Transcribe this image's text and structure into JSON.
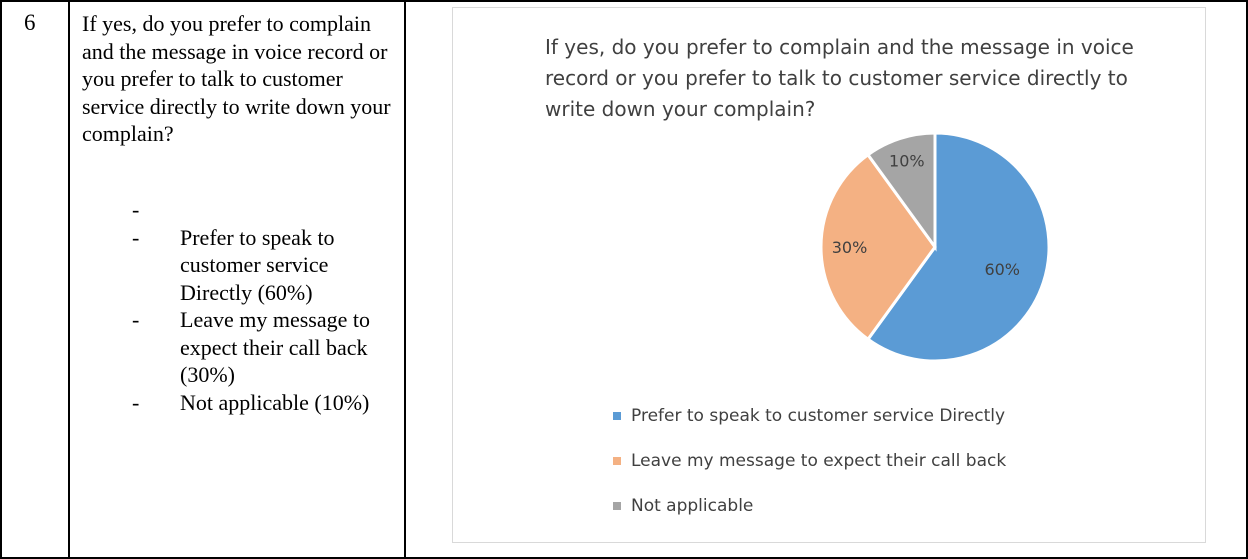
{
  "row": {
    "number": "6",
    "question": "If yes, do you prefer to complain and the message in voice record or you prefer to talk to customer service directly to write down your complain?",
    "options": [
      {
        "dash": "-",
        "text": ""
      },
      {
        "dash": "-",
        "text": "Prefer to speak to customer service Directly (60%)"
      },
      {
        "dash": "-",
        "text": "Leave my message to expect their call back (30%)"
      },
      {
        "dash": "-",
        "text": "Not applicable (10%)"
      }
    ]
  },
  "chart_data": {
    "type": "pie",
    "title": "If yes, do you prefer to complain and the message in voice record or you prefer to talk to customer service directly to write down your complain?",
    "categories": [
      "Prefer to speak to customer service Directly",
      "Leave my message to expect their call back",
      "Not applicable"
    ],
    "values": [
      60,
      30,
      10
    ],
    "labels": [
      "60%",
      "30%",
      "10%"
    ],
    "colors": [
      "#5b9bd5",
      "#f4b183",
      "#a5a5a5"
    ],
    "legend": "bottom"
  }
}
